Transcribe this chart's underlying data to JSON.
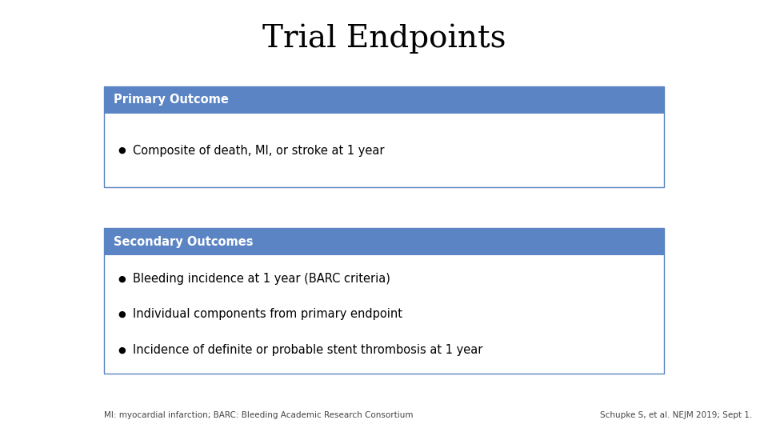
{
  "title": "Trial Endpoints",
  "title_fontsize": 28,
  "title_font": "DejaVu Serif",
  "background_color": "#ffffff",
  "primary_header": "Primary Outcome",
  "primary_header_bg": "#5b84c4",
  "primary_header_text_color": "#ffffff",
  "primary_items": [
    "Composite of death, MI, or stroke at 1 year"
  ],
  "secondary_header": "Secondary Outcomes",
  "secondary_header_bg": "#5b84c4",
  "secondary_header_text_color": "#ffffff",
  "secondary_items": [
    "Bleeding incidence at 1 year (BARC criteria)",
    "Individual components from primary endpoint",
    "Incidence of definite or probable stent thrombosis at 1 year"
  ],
  "box_border_color": "#5b84c4",
  "item_text_color": "#000000",
  "item_fontsize": 10.5,
  "header_fontsize": 10.5,
  "footnote_left": "MI: myocardial infarction; BARC: Bleeding Academic Research Consortium",
  "footnote_right": "Schupke S, et al. NEJM 2019; Sept 1.",
  "footnote_fontsize": 7.5
}
